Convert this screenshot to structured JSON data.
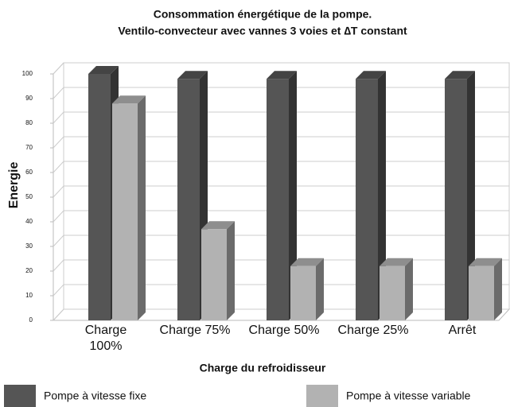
{
  "chart_data": {
    "type": "bar3d",
    "title": "Consommation énergétique de la pompe.",
    "subtitle": "Ventilo-convecteur avec vannes 3 voies et ∆T constant",
    "y_label": "Energie",
    "x_label": "Charge du refroidisseur",
    "categories": [
      "Charge\n100%",
      "Charge 75%",
      "Charge 50%",
      "Charge 25%",
      "Arrêt"
    ],
    "series": [
      {
        "name": "Pompe à vitesse fixe",
        "color": "#555555",
        "values": [
          100,
          98,
          98,
          98,
          98
        ]
      },
      {
        "name": "Pompe à vitesse variable",
        "color": "#b2b2b2",
        "values": [
          88,
          37,
          22,
          22,
          22
        ]
      }
    ],
    "ylim": [
      0,
      100
    ],
    "yticks": [
      0,
      10,
      20,
      30,
      40,
      50,
      60,
      70,
      80,
      90,
      100
    ],
    "grid": true
  }
}
